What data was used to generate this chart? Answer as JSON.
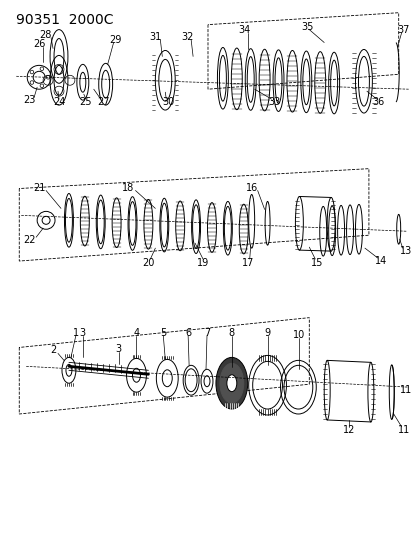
{
  "title": "90351  2000C",
  "bg_color": "#ffffff",
  "line_color": "#000000",
  "title_fontsize": 10,
  "label_fontsize": 7,
  "figsize": [
    4.14,
    5.33
  ],
  "dpi": 100
}
